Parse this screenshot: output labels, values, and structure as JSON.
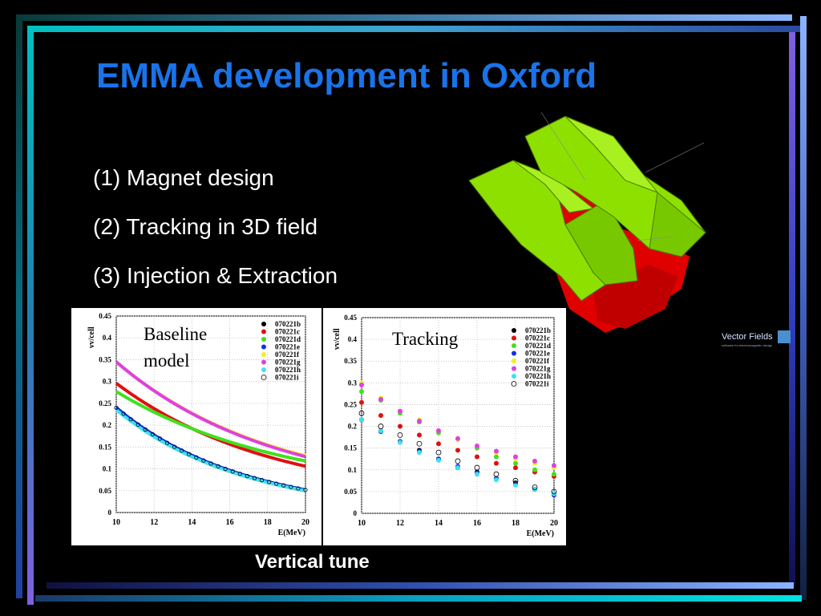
{
  "slide": {
    "title": "EMMA development in Oxford",
    "bullets": [
      "(1) Magnet design",
      "(2) Tracking in 3D field",
      "(3) Injection & Extraction"
    ],
    "caption": "Vertical tune",
    "logo_text": "Vector Fields",
    "logo_tagline": "software for electromagnetic design"
  },
  "colors": {
    "title": "#1a73e8",
    "magnet_green": "#8ee000",
    "magnet_red": "#e00000"
  },
  "chart_data": [
    {
      "type": "line",
      "annotation": "Baseline model",
      "xlabel": "E(MeV)",
      "ylabel": "νv/cell",
      "xlim": [
        10,
        20
      ],
      "ylim": [
        0,
        0.45
      ],
      "xticks": [
        10,
        12,
        14,
        16,
        18,
        20
      ],
      "yticks": [
        0,
        0.05,
        0.1,
        0.15,
        0.2,
        0.25,
        0.3,
        0.35,
        0.4,
        0.45
      ],
      "series": [
        {
          "name": "070221b",
          "color": "#000000",
          "x": [
            10,
            20
          ],
          "y": [
            0.24,
            0.05
          ],
          "k": 1.5
        },
        {
          "name": "070221c",
          "color": "#e01010",
          "x": [
            10,
            20
          ],
          "y": [
            0.296,
            0.106
          ],
          "k": 1.2
        },
        {
          "name": "070221d",
          "color": "#40e020",
          "x": [
            10,
            20
          ],
          "y": [
            0.277,
            0.118
          ],
          "k": 1.1
        },
        {
          "name": "070221e",
          "color": "#1030e0",
          "x": [
            10,
            20
          ],
          "y": [
            0.24,
            0.052
          ],
          "k": 1.5
        },
        {
          "name": "070221f",
          "color": "#f0f020",
          "x": [
            10,
            20
          ],
          "y": [
            0.345,
            0.13
          ],
          "k": 1.2
        },
        {
          "name": "070221g",
          "color": "#e040e0",
          "x": [
            10,
            20
          ],
          "y": [
            0.345,
            0.128
          ],
          "k": 1.2
        },
        {
          "name": "070221h",
          "color": "#40e0f0",
          "x": [
            10,
            20
          ],
          "y": [
            0.235,
            0.05
          ],
          "k": 1.5
        },
        {
          "name": "070221i",
          "color": "#000000",
          "x": [
            10,
            20
          ],
          "y": [
            0.24,
            0.052
          ],
          "k": 1.5,
          "hollow": true
        }
      ]
    },
    {
      "type": "scatter",
      "annotation": "Tracking",
      "xlabel": "E(MeV)",
      "ylabel": "νv/cell",
      "xlim": [
        10,
        20
      ],
      "ylim": [
        0,
        0.45
      ],
      "xticks": [
        10,
        12,
        14,
        16,
        18,
        20
      ],
      "yticks": [
        0,
        0.05,
        0.1,
        0.15,
        0.2,
        0.25,
        0.3,
        0.35,
        0.4,
        0.45
      ],
      "x": [
        10,
        11,
        12,
        13,
        14,
        15,
        16,
        17,
        18,
        19,
        20
      ],
      "series": [
        {
          "name": "070221b",
          "color": "#000000",
          "y": [
            0.215,
            0.19,
            0.165,
            0.145,
            0.125,
            0.105,
            0.095,
            0.08,
            0.07,
            0.055,
            0.045
          ]
        },
        {
          "name": "070221c",
          "color": "#e01010",
          "y": [
            0.255,
            0.225,
            0.2,
            0.18,
            0.16,
            0.145,
            0.13,
            0.115,
            0.105,
            0.095,
            0.085
          ]
        },
        {
          "name": "070221d",
          "color": "#40e020",
          "y": [
            0.28,
            0.26,
            0.23,
            0.21,
            0.185,
            0.17,
            0.15,
            0.13,
            0.115,
            0.1,
            0.09
          ]
        },
        {
          "name": "070221e",
          "color": "#1030e0",
          "y": [
            0.215,
            0.188,
            0.165,
            0.143,
            0.125,
            0.108,
            0.093,
            0.08,
            0.068,
            0.055,
            0.042
          ]
        },
        {
          "name": "070221f",
          "color": "#f0f020",
          "y": [
            0.3,
            0.265,
            0.235,
            0.215,
            0.19,
            0.17,
            0.155,
            0.14,
            0.125,
            0.115,
            0.105
          ]
        },
        {
          "name": "070221g",
          "color": "#e040e0",
          "y": [
            0.295,
            0.262,
            0.235,
            0.212,
            0.19,
            0.172,
            0.155,
            0.143,
            0.13,
            0.12,
            0.11
          ]
        },
        {
          "name": "070221h",
          "color": "#40e0f0",
          "y": [
            0.215,
            0.19,
            0.163,
            0.14,
            0.122,
            0.105,
            0.09,
            0.077,
            0.065,
            0.055,
            0.045
          ]
        },
        {
          "name": "070221i",
          "color": "#000000",
          "y": [
            0.23,
            0.2,
            0.18,
            0.16,
            0.14,
            0.12,
            0.105,
            0.09,
            0.075,
            0.06,
            0.05
          ],
          "hollow": true
        }
      ]
    }
  ]
}
